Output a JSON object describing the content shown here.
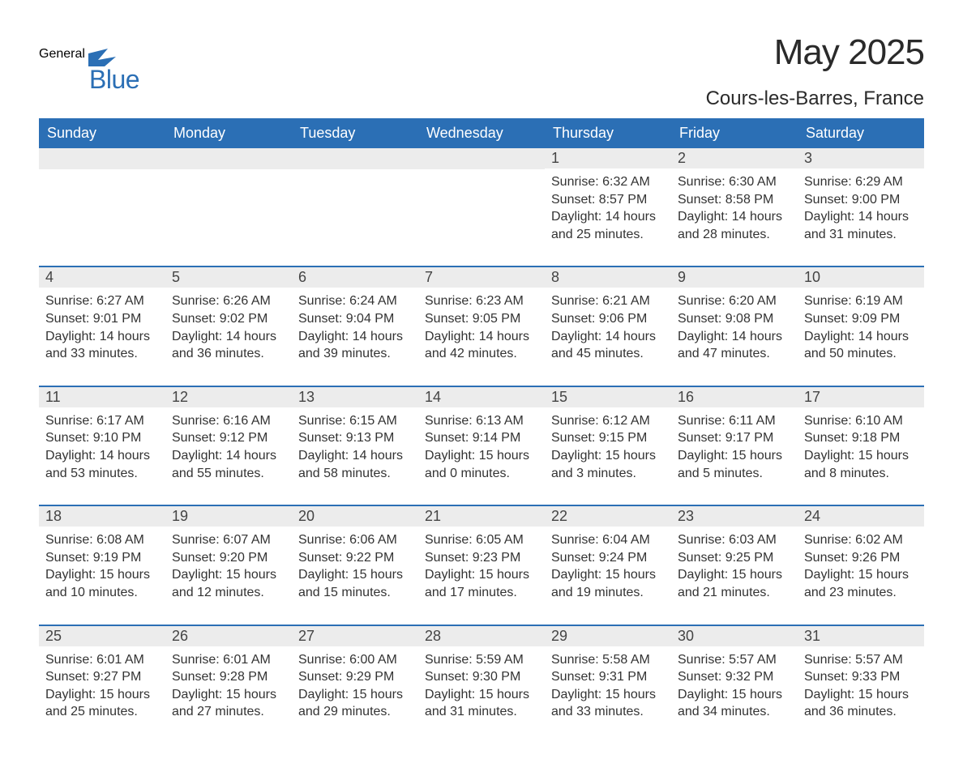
{
  "logo": {
    "general": "General",
    "blue": "Blue",
    "icon_color": "#2b6fb5"
  },
  "title": "May 2025",
  "location": "Cours-les-Barres, France",
  "colors": {
    "header_bg": "#2b6fb5",
    "header_text": "#ffffff",
    "day_num_bg": "#ececec",
    "body_bg": "#ffffff",
    "row_separator": "#2b6fb5",
    "text": "#333333"
  },
  "weekdays": [
    "Sunday",
    "Monday",
    "Tuesday",
    "Wednesday",
    "Thursday",
    "Friday",
    "Saturday"
  ],
  "weeks": [
    [
      {
        "empty": true
      },
      {
        "empty": true
      },
      {
        "empty": true
      },
      {
        "empty": true
      },
      {
        "day": "1",
        "sunrise": "Sunrise: 6:32 AM",
        "sunset": "Sunset: 8:57 PM",
        "daylight": "Daylight: 14 hours and 25 minutes."
      },
      {
        "day": "2",
        "sunrise": "Sunrise: 6:30 AM",
        "sunset": "Sunset: 8:58 PM",
        "daylight": "Daylight: 14 hours and 28 minutes."
      },
      {
        "day": "3",
        "sunrise": "Sunrise: 6:29 AM",
        "sunset": "Sunset: 9:00 PM",
        "daylight": "Daylight: 14 hours and 31 minutes."
      }
    ],
    [
      {
        "day": "4",
        "sunrise": "Sunrise: 6:27 AM",
        "sunset": "Sunset: 9:01 PM",
        "daylight": "Daylight: 14 hours and 33 minutes."
      },
      {
        "day": "5",
        "sunrise": "Sunrise: 6:26 AM",
        "sunset": "Sunset: 9:02 PM",
        "daylight": "Daylight: 14 hours and 36 minutes."
      },
      {
        "day": "6",
        "sunrise": "Sunrise: 6:24 AM",
        "sunset": "Sunset: 9:04 PM",
        "daylight": "Daylight: 14 hours and 39 minutes."
      },
      {
        "day": "7",
        "sunrise": "Sunrise: 6:23 AM",
        "sunset": "Sunset: 9:05 PM",
        "daylight": "Daylight: 14 hours and 42 minutes."
      },
      {
        "day": "8",
        "sunrise": "Sunrise: 6:21 AM",
        "sunset": "Sunset: 9:06 PM",
        "daylight": "Daylight: 14 hours and 45 minutes."
      },
      {
        "day": "9",
        "sunrise": "Sunrise: 6:20 AM",
        "sunset": "Sunset: 9:08 PM",
        "daylight": "Daylight: 14 hours and 47 minutes."
      },
      {
        "day": "10",
        "sunrise": "Sunrise: 6:19 AM",
        "sunset": "Sunset: 9:09 PM",
        "daylight": "Daylight: 14 hours and 50 minutes."
      }
    ],
    [
      {
        "day": "11",
        "sunrise": "Sunrise: 6:17 AM",
        "sunset": "Sunset: 9:10 PM",
        "daylight": "Daylight: 14 hours and 53 minutes."
      },
      {
        "day": "12",
        "sunrise": "Sunrise: 6:16 AM",
        "sunset": "Sunset: 9:12 PM",
        "daylight": "Daylight: 14 hours and 55 minutes."
      },
      {
        "day": "13",
        "sunrise": "Sunrise: 6:15 AM",
        "sunset": "Sunset: 9:13 PM",
        "daylight": "Daylight: 14 hours and 58 minutes."
      },
      {
        "day": "14",
        "sunrise": "Sunrise: 6:13 AM",
        "sunset": "Sunset: 9:14 PM",
        "daylight": "Daylight: 15 hours and 0 minutes."
      },
      {
        "day": "15",
        "sunrise": "Sunrise: 6:12 AM",
        "sunset": "Sunset: 9:15 PM",
        "daylight": "Daylight: 15 hours and 3 minutes."
      },
      {
        "day": "16",
        "sunrise": "Sunrise: 6:11 AM",
        "sunset": "Sunset: 9:17 PM",
        "daylight": "Daylight: 15 hours and 5 minutes."
      },
      {
        "day": "17",
        "sunrise": "Sunrise: 6:10 AM",
        "sunset": "Sunset: 9:18 PM",
        "daylight": "Daylight: 15 hours and 8 minutes."
      }
    ],
    [
      {
        "day": "18",
        "sunrise": "Sunrise: 6:08 AM",
        "sunset": "Sunset: 9:19 PM",
        "daylight": "Daylight: 15 hours and 10 minutes."
      },
      {
        "day": "19",
        "sunrise": "Sunrise: 6:07 AM",
        "sunset": "Sunset: 9:20 PM",
        "daylight": "Daylight: 15 hours and 12 minutes."
      },
      {
        "day": "20",
        "sunrise": "Sunrise: 6:06 AM",
        "sunset": "Sunset: 9:22 PM",
        "daylight": "Daylight: 15 hours and 15 minutes."
      },
      {
        "day": "21",
        "sunrise": "Sunrise: 6:05 AM",
        "sunset": "Sunset: 9:23 PM",
        "daylight": "Daylight: 15 hours and 17 minutes."
      },
      {
        "day": "22",
        "sunrise": "Sunrise: 6:04 AM",
        "sunset": "Sunset: 9:24 PM",
        "daylight": "Daylight: 15 hours and 19 minutes."
      },
      {
        "day": "23",
        "sunrise": "Sunrise: 6:03 AM",
        "sunset": "Sunset: 9:25 PM",
        "daylight": "Daylight: 15 hours and 21 minutes."
      },
      {
        "day": "24",
        "sunrise": "Sunrise: 6:02 AM",
        "sunset": "Sunset: 9:26 PM",
        "daylight": "Daylight: 15 hours and 23 minutes."
      }
    ],
    [
      {
        "day": "25",
        "sunrise": "Sunrise: 6:01 AM",
        "sunset": "Sunset: 9:27 PM",
        "daylight": "Daylight: 15 hours and 25 minutes."
      },
      {
        "day": "26",
        "sunrise": "Sunrise: 6:01 AM",
        "sunset": "Sunset: 9:28 PM",
        "daylight": "Daylight: 15 hours and 27 minutes."
      },
      {
        "day": "27",
        "sunrise": "Sunrise: 6:00 AM",
        "sunset": "Sunset: 9:29 PM",
        "daylight": "Daylight: 15 hours and 29 minutes."
      },
      {
        "day": "28",
        "sunrise": "Sunrise: 5:59 AM",
        "sunset": "Sunset: 9:30 PM",
        "daylight": "Daylight: 15 hours and 31 minutes."
      },
      {
        "day": "29",
        "sunrise": "Sunrise: 5:58 AM",
        "sunset": "Sunset: 9:31 PM",
        "daylight": "Daylight: 15 hours and 33 minutes."
      },
      {
        "day": "30",
        "sunrise": "Sunrise: 5:57 AM",
        "sunset": "Sunset: 9:32 PM",
        "daylight": "Daylight: 15 hours and 34 minutes."
      },
      {
        "day": "31",
        "sunrise": "Sunrise: 5:57 AM",
        "sunset": "Sunset: 9:33 PM",
        "daylight": "Daylight: 15 hours and 36 minutes."
      }
    ]
  ]
}
